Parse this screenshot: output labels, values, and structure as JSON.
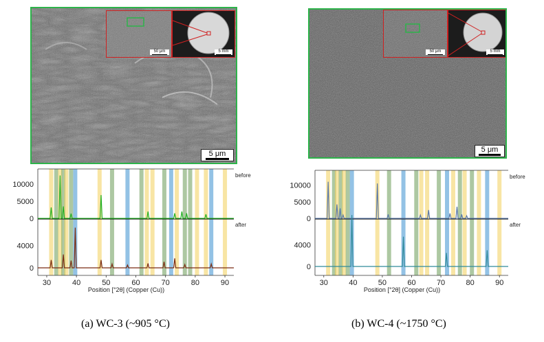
{
  "panels": [
    {
      "id": "a",
      "caption": "(a) WC-3 (~905 °C)",
      "sem_scale": "5 μm",
      "inset_scale": "50 μm",
      "overview_scale": "5 mm",
      "xrd": {
        "x_ticks": [
          "30",
          "40",
          "50",
          "60",
          "70",
          "80",
          "90"
        ],
        "y_top_ticks": [
          "10000",
          "5000",
          "0"
        ],
        "y_bottom_ticks": [
          "4000",
          "0"
        ],
        "label_before": "before",
        "label_after": "after",
        "xlabel": "Position [°2θ] (Copper (Cu))"
      }
    },
    {
      "id": "b",
      "caption": "(b) WC-4 (~1750 °C)",
      "sem_scale": "5 μm",
      "inset_scale": "50 μm",
      "overview_scale": "5 mm",
      "xrd": {
        "x_ticks": [
          "30",
          "40",
          "50",
          "60",
          "70",
          "80",
          "90"
        ],
        "y_top_ticks": [
          "10000",
          "5000",
          "0"
        ],
        "y_bottom_ticks": [
          "4000",
          "0"
        ],
        "label_before": "before",
        "label_after": "after",
        "xlabel": "Position [°2θ] (Copper (Cu))"
      }
    }
  ],
  "chart_data": [
    {
      "type": "line",
      "xlim": [
        27,
        93
      ],
      "series": [
        {
          "color": "#22b022",
          "peaks": [
            [
              31.5,
              3200
            ],
            [
              34.5,
              12500
            ],
            [
              35.6,
              3500
            ],
            [
              38.2,
              1400
            ],
            [
              48.3,
              6800
            ],
            [
              64.1,
              2000
            ],
            [
              73.1,
              1500
            ],
            [
              75.5,
              2000
            ],
            [
              77.1,
              1500
            ],
            [
              83.6,
              1200
            ]
          ]
        },
        {
          "color": "#7a2a10",
          "peaks": [
            [
              31.5,
              1400
            ],
            [
              35.6,
              2400
            ],
            [
              38.2,
              1300
            ],
            [
              39.6,
              7200
            ],
            [
              48.3,
              1400
            ],
            [
              52.0,
              700
            ],
            [
              57.2,
              500
            ],
            [
              64.1,
              800
            ],
            [
              69.5,
              1100
            ],
            [
              73.1,
              1700
            ],
            [
              76.5,
              600
            ],
            [
              85.4,
              700
            ]
          ]
        }
      ],
      "bands": [
        {
          "x": 31.5,
          "color": "#f2cf5a"
        },
        {
          "x": 33.2,
          "color": "#6a9a55"
        },
        {
          "x": 34.5,
          "color": "#f2cf5a"
        },
        {
          "x": 35.6,
          "color": "#6a9a55"
        },
        {
          "x": 36.6,
          "color": "#f2cf5a"
        },
        {
          "x": 38.2,
          "color": "#6a9a55"
        },
        {
          "x": 39.6,
          "color": "#3a8fd0"
        },
        {
          "x": 47.8,
          "color": "#f2cf5a"
        },
        {
          "x": 52.0,
          "color": "#6a9a55"
        },
        {
          "x": 57.2,
          "color": "#3a8fd0"
        },
        {
          "x": 61.9,
          "color": "#6a9a55"
        },
        {
          "x": 63.7,
          "color": "#f2cf5a"
        },
        {
          "x": 65.6,
          "color": "#f2cf5a"
        },
        {
          "x": 69.6,
          "color": "#6a9a55"
        },
        {
          "x": 71.9,
          "color": "#3a8fd0"
        },
        {
          "x": 73.8,
          "color": "#f2cf5a"
        },
        {
          "x": 76.5,
          "color": "#6a9a55"
        },
        {
          "x": 78.3,
          "color": "#6a9a55"
        },
        {
          "x": 80.6,
          "color": "#f2cf5a"
        },
        {
          "x": 83.6,
          "color": "#f2cf5a"
        },
        {
          "x": 85.4,
          "color": "#3a8fd0"
        },
        {
          "x": 90.0,
          "color": "#f2cf5a"
        }
      ]
    },
    {
      "type": "line",
      "xlim": [
        27,
        93
      ],
      "series": [
        {
          "color": "#5a78a8",
          "peaks": [
            [
              31.5,
              11000
            ],
            [
              34.5,
              4200
            ],
            [
              35.6,
              3000
            ],
            [
              36.6,
              1000
            ],
            [
              48.3,
              10500
            ],
            [
              52.0,
              1200
            ],
            [
              63.0,
              1000
            ],
            [
              65.8,
              2500
            ],
            [
              73.1,
              1500
            ],
            [
              75.5,
              3500
            ],
            [
              77.1,
              1200
            ],
            [
              78.8,
              800
            ]
          ]
        },
        {
          "color": "#2f8a9a",
          "peaks": [
            [
              39.6,
              9500
            ],
            [
              57.2,
              5500
            ],
            [
              71.9,
              2500
            ],
            [
              85.8,
              3000
            ]
          ]
        }
      ],
      "bands": [
        {
          "x": 31.5,
          "color": "#f2cf5a"
        },
        {
          "x": 33.5,
          "color": "#6a9a55"
        },
        {
          "x": 34.5,
          "color": "#f2cf5a"
        },
        {
          "x": 35.8,
          "color": "#6a9a55"
        },
        {
          "x": 36.9,
          "color": "#f2cf5a"
        },
        {
          "x": 38.2,
          "color": "#6a9a55"
        },
        {
          "x": 39.6,
          "color": "#3a8fd0"
        },
        {
          "x": 48.3,
          "color": "#f2cf5a"
        },
        {
          "x": 52.3,
          "color": "#6a9a55"
        },
        {
          "x": 57.2,
          "color": "#3a8fd0"
        },
        {
          "x": 61.6,
          "color": "#6a9a55"
        },
        {
          "x": 63.3,
          "color": "#f2cf5a"
        },
        {
          "x": 65.3,
          "color": "#f2cf5a"
        },
        {
          "x": 69.3,
          "color": "#6a9a55"
        },
        {
          "x": 72.1,
          "color": "#3a8fd0"
        },
        {
          "x": 74.2,
          "color": "#f2cf5a"
        },
        {
          "x": 76.5,
          "color": "#6a9a55"
        },
        {
          "x": 78.1,
          "color": "#f2cf5a"
        },
        {
          "x": 80.6,
          "color": "#6a9a55"
        },
        {
          "x": 83.0,
          "color": "#f2cf5a"
        },
        {
          "x": 85.8,
          "color": "#3a8fd0"
        },
        {
          "x": 90.0,
          "color": "#f2cf5a"
        }
      ]
    }
  ]
}
